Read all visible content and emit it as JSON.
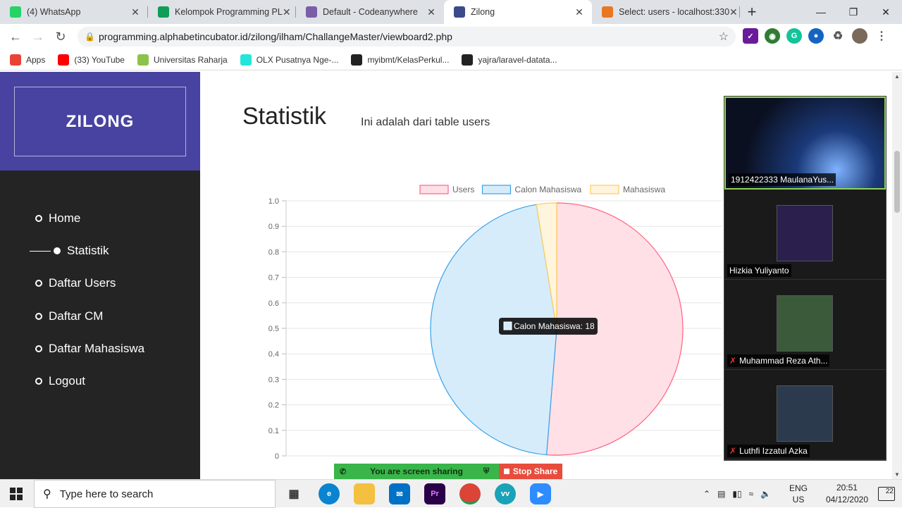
{
  "browser": {
    "tabs": [
      {
        "title": "(4) WhatsApp",
        "icon": "whatsapp-icon",
        "color": "#25d366"
      },
      {
        "title": "Kelompok Programming PL",
        "icon": "sheets-icon",
        "color": "#0f9d58"
      },
      {
        "title": "Default - Codeanywhere",
        "icon": "codeanywhere-icon",
        "color": "#7b5ea7"
      },
      {
        "title": "Zilong",
        "icon": "zilong-icon",
        "color": "#3b4a8a"
      },
      {
        "title": "Select: users - localhost:330",
        "icon": "phpmyadmin-icon",
        "color": "#e87722"
      }
    ],
    "url": "programming.alphabetincubator.id/zilong/ilham/ChallangeMaster/viewboard2.php",
    "bookmarks": [
      {
        "label": "Apps",
        "icon": "apps-grid-icon",
        "color": "#ea4335"
      },
      {
        "label": "(33) YouTube",
        "icon": "youtube-icon",
        "color": "#ff0000"
      },
      {
        "label": "Universitas Raharja",
        "icon": "raharja-icon",
        "color": "#8bc34a"
      },
      {
        "label": "OLX Pusatnya Nge-...",
        "icon": "olx-icon",
        "color": "#23e5db"
      },
      {
        "label": "myibmt/KelasPerkul...",
        "icon": "github-icon",
        "color": "#222222"
      },
      {
        "label": "yajra/laravel-datata...",
        "icon": "github-icon",
        "color": "#222222"
      }
    ]
  },
  "app": {
    "brand": "ZILONG",
    "menu": [
      {
        "label": "Home",
        "active": false
      },
      {
        "label": "Statistik",
        "active": true
      },
      {
        "label": "Daftar Users",
        "active": false
      },
      {
        "label": "Daftar CM",
        "active": false
      },
      {
        "label": "Daftar Mahasiswa",
        "active": false
      },
      {
        "label": "Logout",
        "active": false
      }
    ],
    "page_title": "Statistik",
    "page_subtitle": "Ini adalah dari table users"
  },
  "chart_data": {
    "type": "pie",
    "labels": [
      "Users",
      "Calon Mahasiswa",
      "Mahasiswa"
    ],
    "values": [
      20,
      18,
      1
    ],
    "colors_fill": [
      "#ffe0e6",
      "#d7ecfb",
      "#fff5dd"
    ],
    "colors_border": [
      "#ff6384",
      "#36a2eb",
      "#ffcd56"
    ],
    "y_ticks": [
      "1.0",
      "0.9",
      "0.8",
      "0.7",
      "0.6",
      "0.5",
      "0.4",
      "0.3",
      "0.2",
      "0.1",
      "0"
    ],
    "legend_position": "top",
    "grid": true,
    "tooltip": "Calon Mahasiswa: 18"
  },
  "zoom": {
    "participants": [
      {
        "name": "1912422333 MaulanaYus...",
        "muted": false
      },
      {
        "name": "Hizkia Yuliyanto",
        "muted": false
      },
      {
        "name": "Muhammad Reza Ath...",
        "muted": true
      },
      {
        "name": "Luthfi Izzatul Azka",
        "muted": true
      }
    ],
    "sharing_text": "You are screen sharing",
    "stop_label": "Stop Share"
  },
  "taskbar": {
    "search_placeholder": "Type here to search",
    "lang_top": "ENG",
    "lang_bottom": "US",
    "time": "20:51",
    "date": "04/12/2020",
    "notifications": "22"
  }
}
